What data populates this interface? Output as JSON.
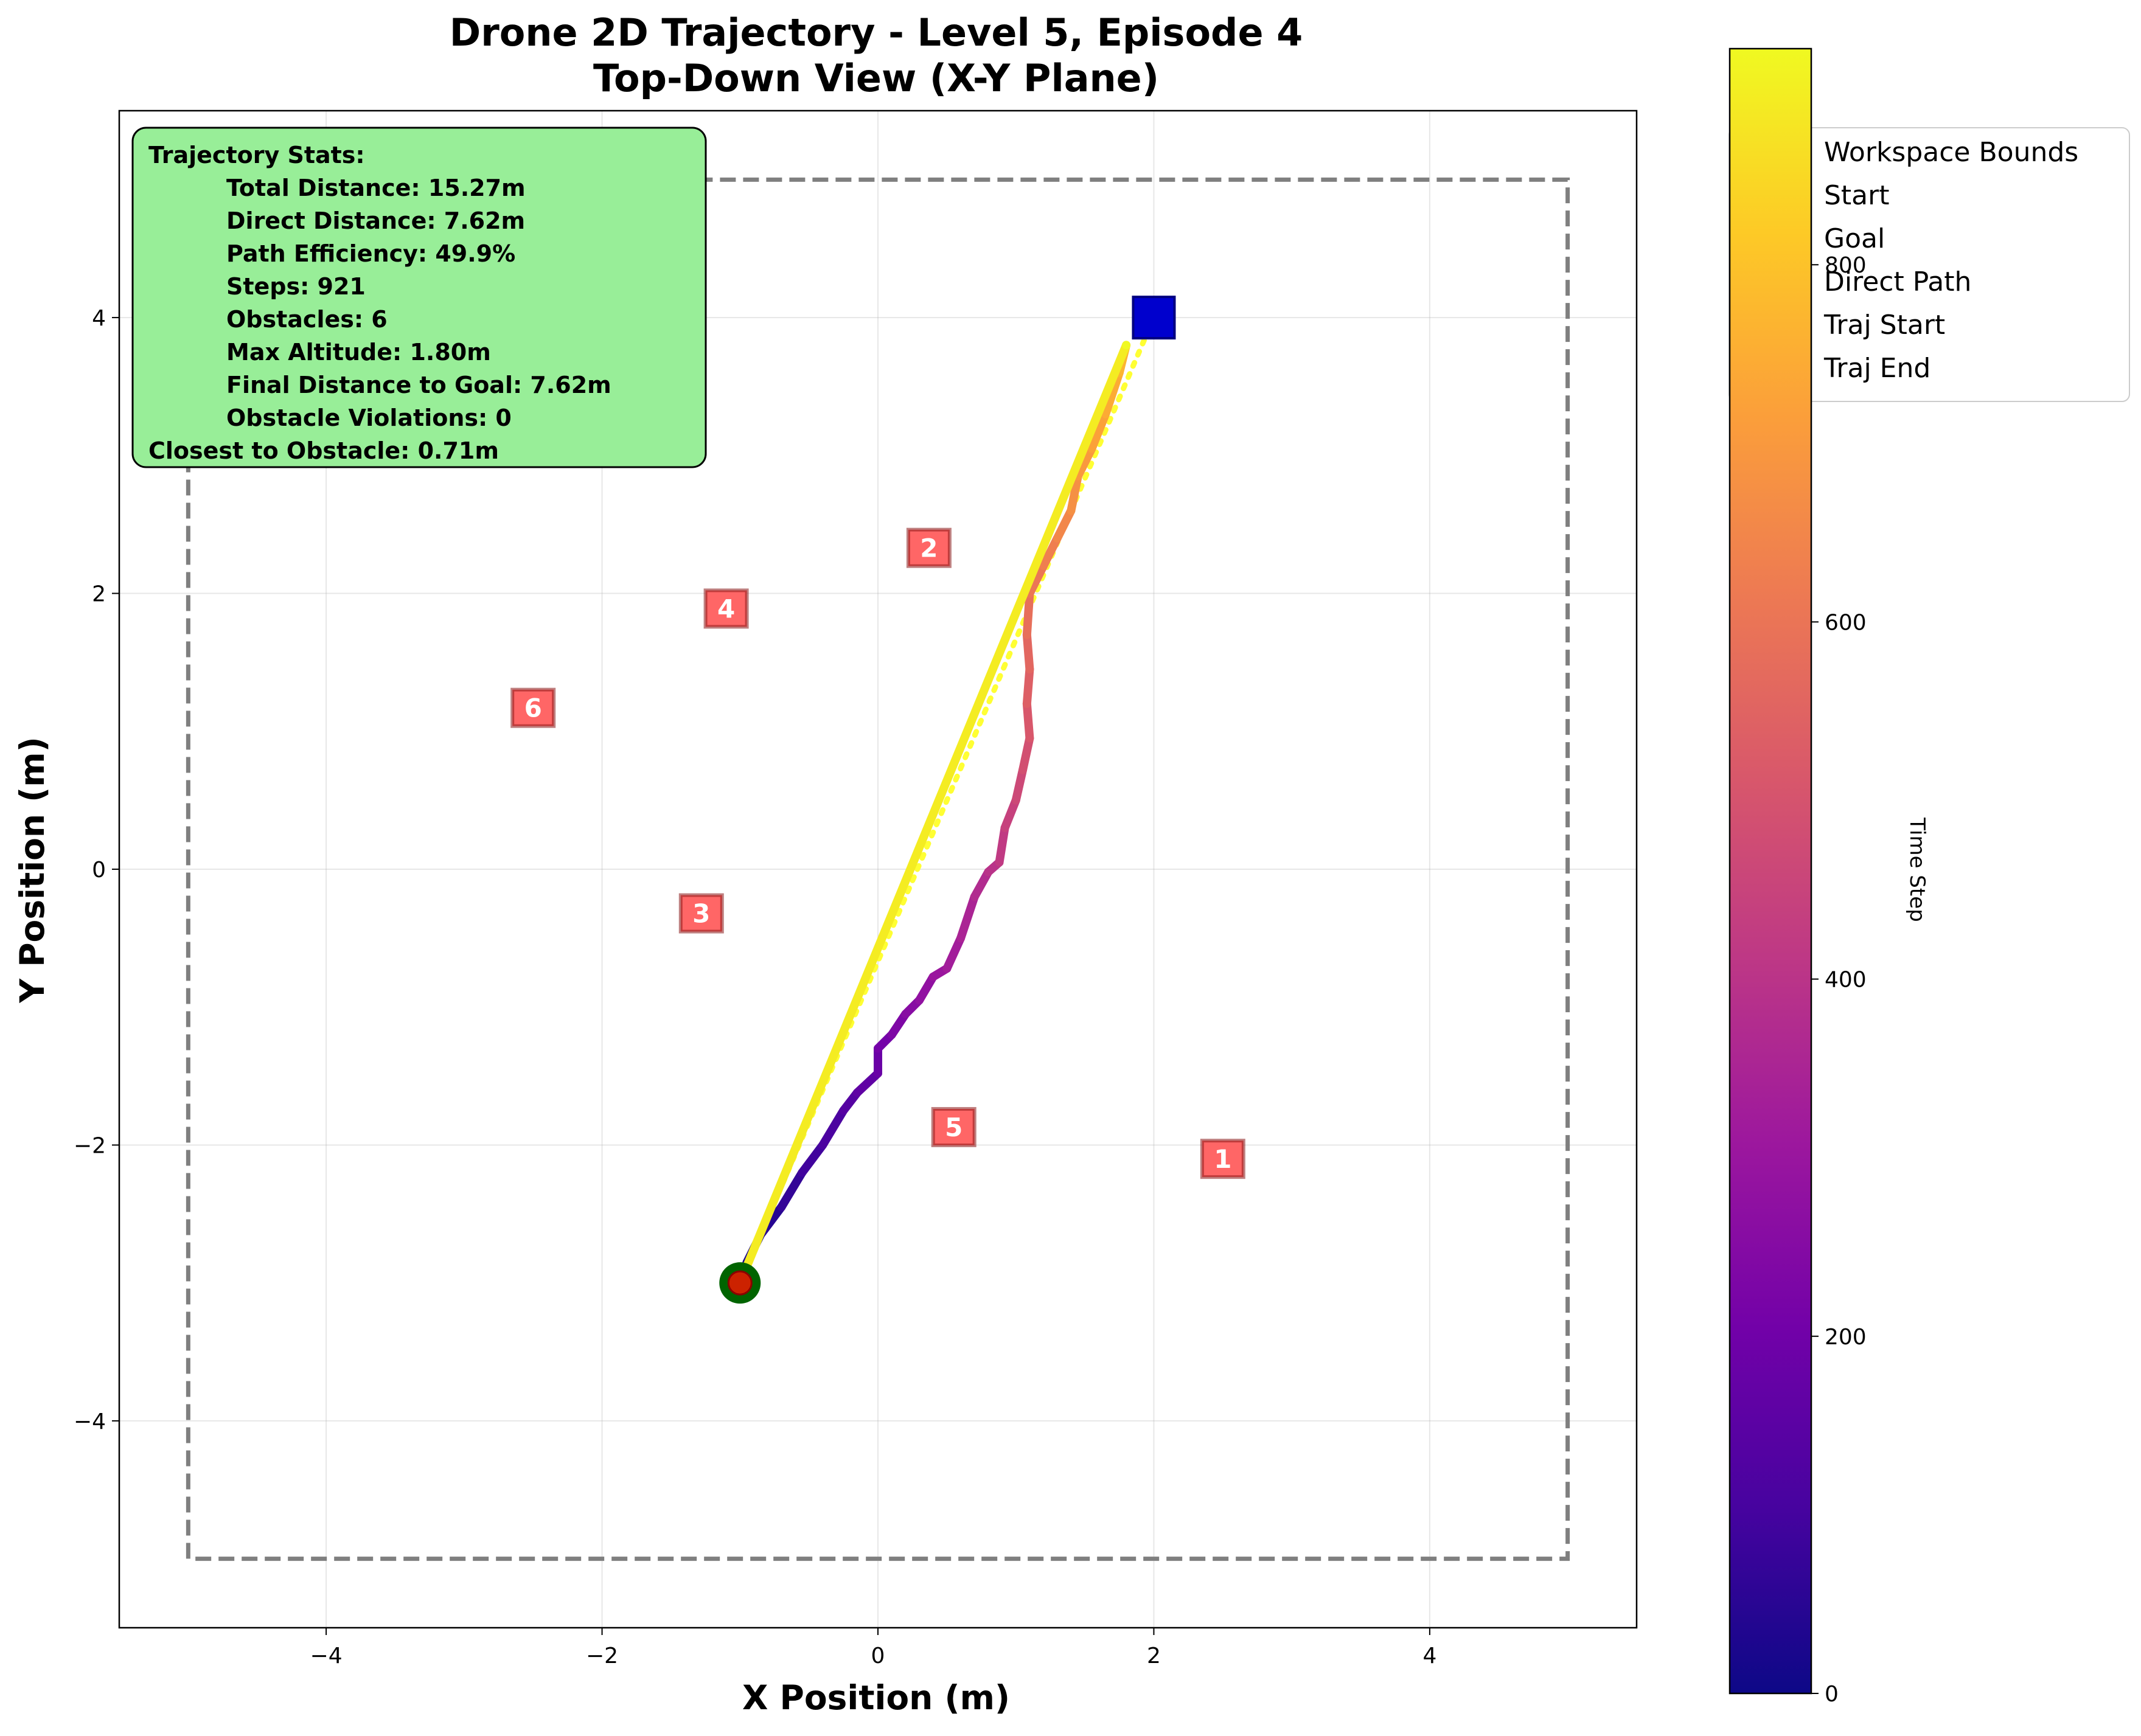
{
  "chart_data": {
    "type": "scatter",
    "title_line1": "Drone 2D Trajectory - Level 5, Episode 4",
    "title_line2": "Top-Down View (X-Y Plane)",
    "xlabel": "X Position (m)",
    "ylabel": "Y Position (m)",
    "xlim": [
      -5.5,
      5.5
    ],
    "ylim": [
      -5.5,
      5.5
    ],
    "x_ticks": [
      -4,
      -2,
      0,
      2,
      4
    ],
    "y_ticks": [
      -4,
      -2,
      0,
      2,
      4
    ],
    "x_tick_labels": [
      "−4",
      "−2",
      "0",
      "2",
      "4"
    ],
    "y_tick_labels": [
      "−4",
      "−2",
      "0",
      "2",
      "4"
    ],
    "grid": true,
    "workspace_bounds": {
      "x": [
        -5,
        5
      ],
      "y": [
        -5,
        5
      ],
      "color": "#7f7f7f"
    },
    "start": {
      "x": -1.0,
      "y": -3.0,
      "color": "#006400"
    },
    "goal": {
      "x": 2.0,
      "y": 4.0,
      "color": "#0000cd"
    },
    "direct_path": {
      "from": [
        -1.0,
        -3.0
      ],
      "to": [
        2.0,
        4.0
      ],
      "color": "#ffff33"
    },
    "trajectory": {
      "steps": 921,
      "points": [
        [
          -1.0,
          -3.0
        ],
        [
          -0.95,
          -2.85
        ],
        [
          -0.85,
          -2.65
        ],
        [
          -0.7,
          -2.45
        ],
        [
          -0.55,
          -2.2
        ],
        [
          -0.4,
          -2.0
        ],
        [
          -0.25,
          -1.75
        ],
        [
          -0.15,
          -1.62
        ],
        [
          0.0,
          -1.48
        ],
        [
          0.0,
          -1.3
        ],
        [
          0.1,
          -1.2
        ],
        [
          0.2,
          -1.05
        ],
        [
          0.3,
          -0.95
        ],
        [
          0.4,
          -0.78
        ],
        [
          0.5,
          -0.72
        ],
        [
          0.6,
          -0.5
        ],
        [
          0.7,
          -0.2
        ],
        [
          0.8,
          -0.02
        ],
        [
          0.88,
          0.05
        ],
        [
          0.92,
          0.3
        ],
        [
          1.0,
          0.5
        ],
        [
          1.05,
          0.72
        ],
        [
          1.1,
          0.95
        ],
        [
          1.08,
          1.2
        ],
        [
          1.1,
          1.45
        ],
        [
          1.08,
          1.7
        ],
        [
          1.1,
          2.0
        ],
        [
          1.2,
          2.2
        ],
        [
          1.3,
          2.4
        ],
        [
          1.4,
          2.6
        ],
        [
          1.45,
          2.85
        ],
        [
          1.55,
          3.05
        ],
        [
          1.65,
          3.3
        ],
        [
          1.75,
          3.6
        ],
        [
          1.8,
          3.8
        ]
      ],
      "return_leg": [
        [
          1.8,
          3.8
        ],
        [
          -1.0,
          -3.0
        ]
      ],
      "traj_start": {
        "x": -1.0,
        "y": -3.0,
        "color": "#cc2200"
      },
      "traj_end": {
        "x": 1.8,
        "y": 3.8,
        "color": "#f0f921"
      }
    },
    "obstacles": [
      {
        "label": "1",
        "x": 2.5,
        "y": -2.1
      },
      {
        "label": "2",
        "x": 0.37,
        "y": 2.33
      },
      {
        "label": "3",
        "x": -1.28,
        "y": -0.32
      },
      {
        "label": "4",
        "x": -1.1,
        "y": 1.89
      },
      {
        "label": "5",
        "x": 0.55,
        "y": -1.87
      },
      {
        "label": "6",
        "x": -2.5,
        "y": 1.17
      }
    ],
    "obstacle_color": "#ff6666",
    "stats_box": {
      "title": "Trajectory Stats:",
      "lines": [
        "Total Distance: 15.27m",
        "Direct Distance: 7.62m",
        "Path Efficiency: 49.9%",
        "Steps: 921",
        "Obstacles: 6",
        "Max Altitude: 1.80m",
        "Final Distance to Goal: 7.62m",
        "Obstacle Violations: 0"
      ],
      "last_line": "Closest to Obstacle: 0.71m",
      "background": "#98ee98"
    },
    "legend": {
      "placement": "upper-right",
      "entries": [
        "Workspace Bounds",
        "Start",
        "Goal",
        "Direct Path",
        "Traj Start",
        "Traj End"
      ]
    },
    "colorbar": {
      "label": "Time Step",
      "range": [
        0,
        921
      ],
      "ticks": [
        0,
        200,
        400,
        600,
        800
      ],
      "tick_labels": [
        "0",
        "200",
        "400",
        "600",
        "800"
      ],
      "colormap": "plasma",
      "stops": [
        "#0d0887",
        "#46039f",
        "#7201a8",
        "#9c179e",
        "#bd3786",
        "#d8576b",
        "#ed7953",
        "#fb9f3a",
        "#fdca26",
        "#f0f921"
      ]
    }
  }
}
